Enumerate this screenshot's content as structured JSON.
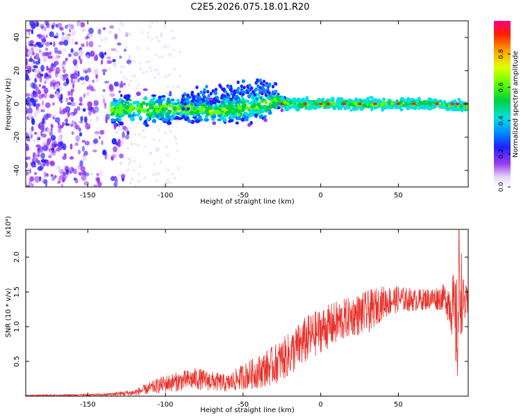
{
  "title": "C2E5.2026.075.18.01.R20",
  "colorbar": {
    "label": "Normalized spectral amplitude",
    "ticks": [
      "0.0",
      "0.2",
      "0.4",
      "0.6",
      "0.8"
    ],
    "tick_values": [
      0.0,
      0.2,
      0.4,
      0.6,
      0.8
    ],
    "range": [
      0,
      1
    ]
  },
  "chart_data": [
    {
      "type": "heatmap",
      "name": "spectrogram",
      "title": "C2E5.2026.075.18.01.R20",
      "xlabel": "Height of straight line (km)",
      "ylabel": "Frequency (Hz)",
      "xlim": [
        -190,
        95
      ],
      "ylim": [
        -50,
        50
      ],
      "x_ticks": [
        -150,
        -100,
        -50,
        0,
        50
      ],
      "x_tick_labels": [
        "-150",
        "-100",
        "-50",
        "0",
        "50"
      ],
      "y_ticks": [
        -40,
        -20,
        0,
        20,
        40
      ],
      "y_tick_labels": [
        "-40",
        "-20",
        "0",
        "20",
        "40"
      ],
      "noise_region_x": [
        -190,
        -130
      ],
      "signal_track": {
        "x": [
          -135,
          -110,
          -90,
          -70,
          -50,
          -35,
          -28,
          -20,
          0,
          25,
          50,
          75,
          95
        ],
        "center_freq": [
          -3,
          -3,
          -3,
          -4,
          -3,
          0,
          2,
          0,
          0,
          0,
          0,
          0,
          -2
        ],
        "spread": [
          6,
          6,
          5,
          5,
          6,
          6,
          3,
          2,
          2,
          2,
          2,
          2,
          2
        ]
      },
      "hotspot_x": [
        -25,
        -10,
        0,
        5,
        15,
        25,
        35,
        50,
        60,
        75,
        85,
        88,
        93
      ]
    },
    {
      "type": "line",
      "name": "snr",
      "xlabel": "Height of straight line (km)",
      "ylabel": "SNR (10 * v/v)",
      "scale_label": "(x10⁴)",
      "xlim": [
        -190,
        95
      ],
      "ylim": [
        0,
        2.4
      ],
      "x_ticks": [
        -150,
        -100,
        -50,
        0,
        50
      ],
      "x_tick_labels": [
        "-150",
        "-100",
        "-50",
        "0",
        "50"
      ],
      "y_ticks": [
        0.5,
        1.0,
        1.5,
        2.0
      ],
      "y_tick_labels": [
        "0.5",
        "1.0",
        "1.5",
        "2.0"
      ],
      "color": "#e8312a",
      "envelope": {
        "x": [
          -190,
          -140,
          -120,
          -100,
          -80,
          -60,
          -50,
          -40,
          -30,
          -20,
          -10,
          0,
          10,
          20,
          30,
          40,
          50,
          60,
          70,
          80,
          85,
          88,
          90,
          92,
          95
        ],
        "mean": [
          0.01,
          0.02,
          0.05,
          0.18,
          0.25,
          0.18,
          0.28,
          0.35,
          0.45,
          0.6,
          0.8,
          0.95,
          1.05,
          1.15,
          1.2,
          1.35,
          1.4,
          1.38,
          1.4,
          1.42,
          1.3,
          0.9,
          1.6,
          1.35,
          1.3
        ],
        "noise": [
          0.005,
          0.01,
          0.03,
          0.08,
          0.1,
          0.08,
          0.12,
          0.15,
          0.18,
          0.2,
          0.22,
          0.2,
          0.2,
          0.18,
          0.2,
          0.15,
          0.12,
          0.1,
          0.1,
          0.12,
          0.3,
          0.5,
          0.5,
          0.2,
          0.15
        ]
      },
      "peak": {
        "x": 89,
        "y": 2.4
      }
    }
  ]
}
